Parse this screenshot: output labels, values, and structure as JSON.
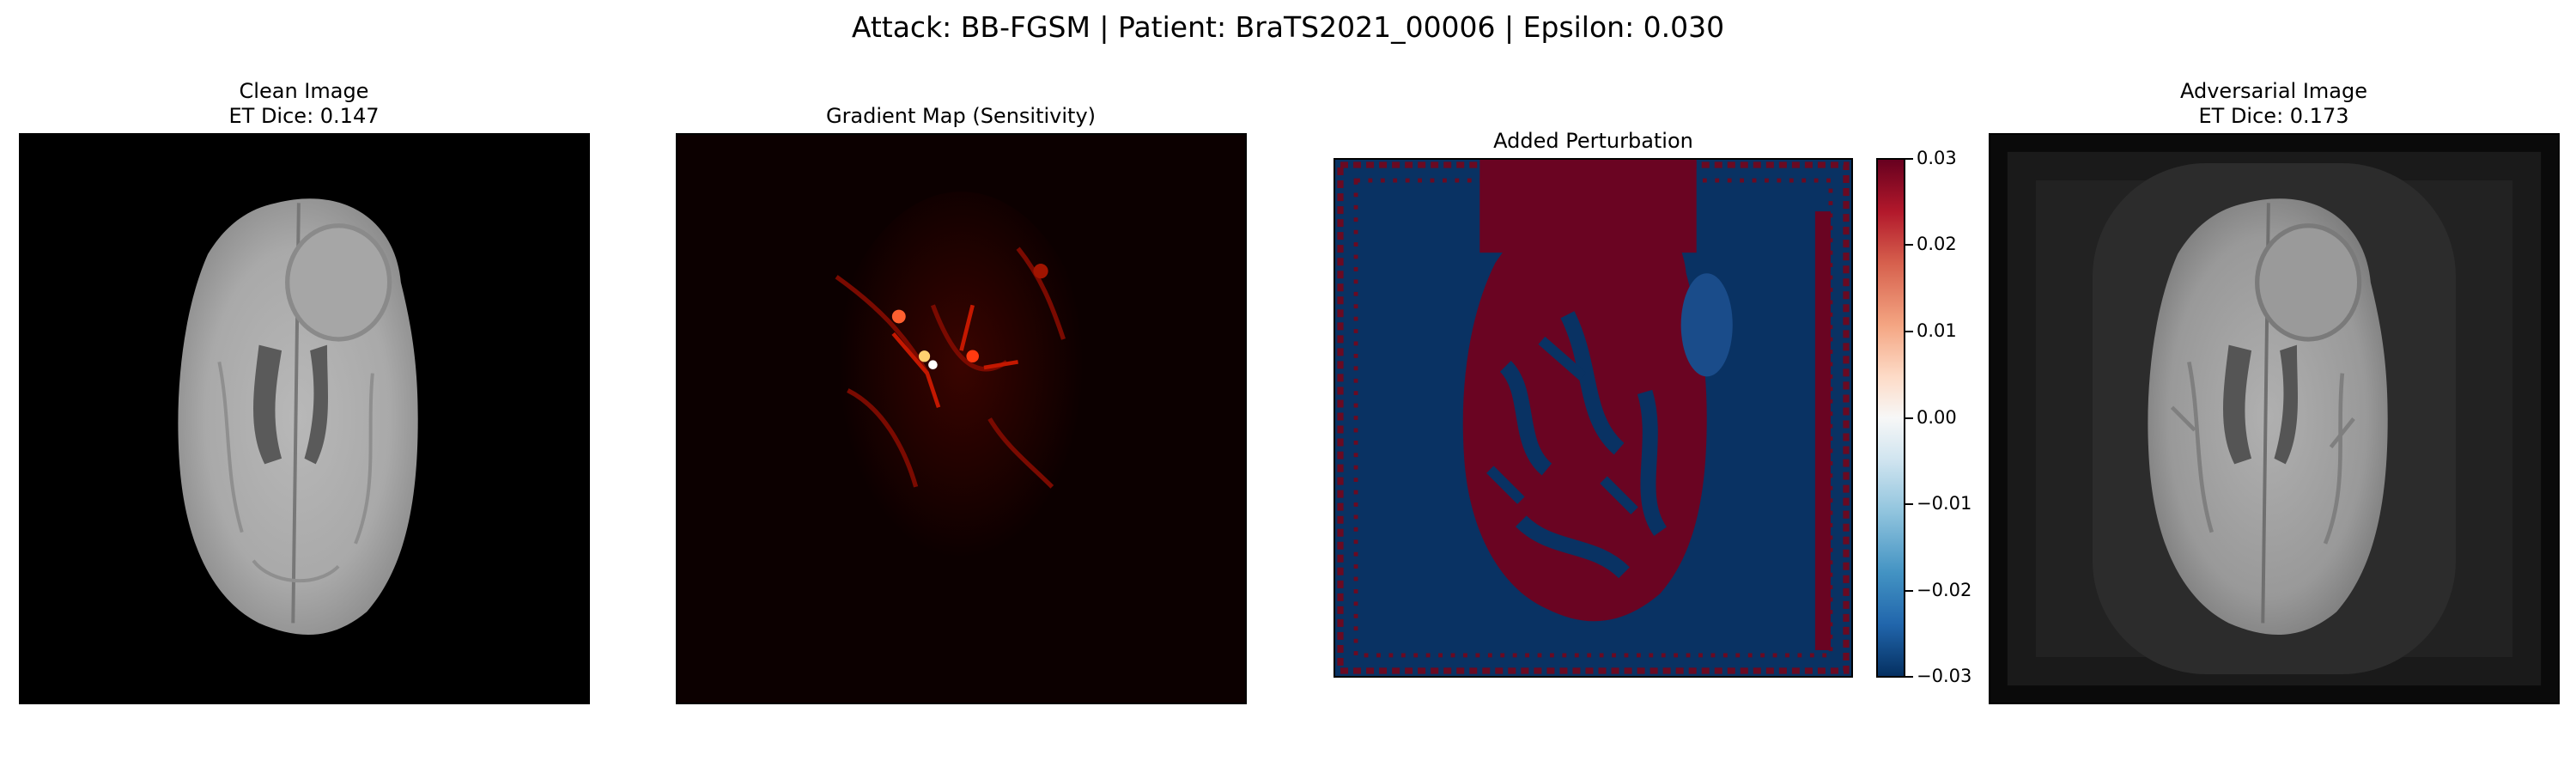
{
  "figure": {
    "suptitle": "Attack: BB-FGSM | Patient: BraTS2021_00006 | Epsilon: 0.030"
  },
  "panels": [
    {
      "title_line1": "Clean Image",
      "title_line2": "ET Dice: 0.147",
      "image": "brain-mri-grayscale"
    },
    {
      "title_line1": "Gradient Map (Sensitivity)",
      "image": "gradient-heatmap-red"
    },
    {
      "title_line1": "Added Perturbation",
      "image": "perturbation-map-red-blue"
    },
    {
      "title_line1": "Adversarial Image",
      "title_line2": "ET Dice: 0.173",
      "image": "adversarial-brain-mri"
    }
  ],
  "colorbar": {
    "ticks": [
      "0.03",
      "0.02",
      "0.01",
      "0.00",
      "−0.01",
      "−0.02",
      "−0.03"
    ],
    "colormap": "RdBu_r",
    "colors": {
      "max": "#67001f",
      "mid": "#f7f7f7",
      "min": "#053061"
    }
  }
}
